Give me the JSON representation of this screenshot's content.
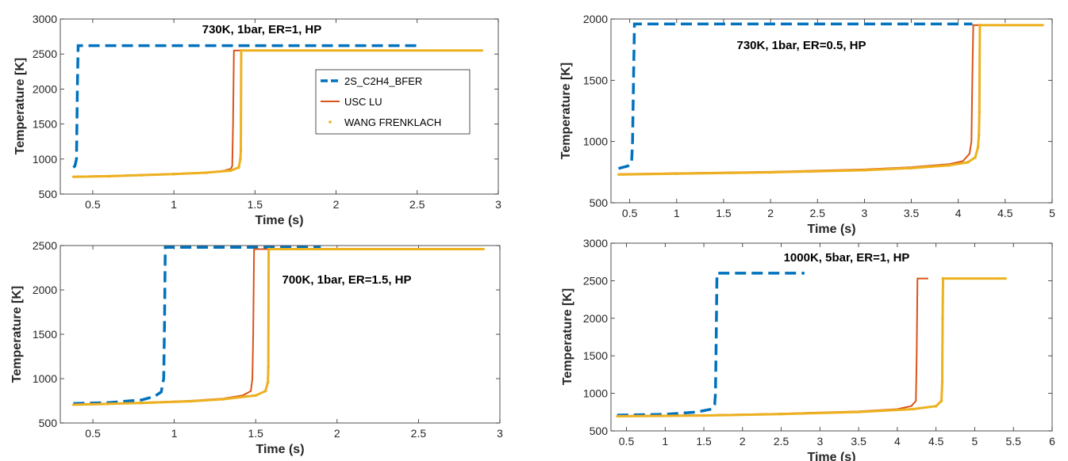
{
  "colors": {
    "bfer": "#0072BD",
    "usc": "#D95319",
    "wang": "#EDB120",
    "axis": "#262626"
  },
  "chart_data": [
    {
      "type": "line",
      "title": "",
      "annotation": "730K, 1bar, ER=1, HP",
      "xlabel": "Time (s)",
      "ylabel": "Temperature [K]",
      "xlim": [
        0.3,
        3
      ],
      "ylim": [
        500,
        3000
      ],
      "xticks": [
        0.5,
        1,
        1.5,
        2,
        2.5,
        3
      ],
      "yticks": [
        500,
        1000,
        1500,
        2000,
        2500,
        3000
      ],
      "legend": {
        "placement": "inside-top-right",
        "entries": [
          "2S_C2H4_BFER",
          "USC LU",
          "WANG FRENKLACH"
        ]
      },
      "series": [
        {
          "name": "2S_C2H4_BFER",
          "style": "dashed",
          "points": [
            [
              0.38,
              880
            ],
            [
              0.39,
              900
            ],
            [
              0.4,
              1000
            ],
            [
              0.405,
              2000
            ],
            [
              0.41,
              2620
            ],
            [
              2.5,
              2620
            ]
          ]
        },
        {
          "name": "USC LU",
          "style": "solid",
          "points": [
            [
              0.38,
              750
            ],
            [
              0.6,
              760
            ],
            [
              0.8,
              775
            ],
            [
              1.0,
              790
            ],
            [
              1.2,
              810
            ],
            [
              1.3,
              830
            ],
            [
              1.35,
              860
            ],
            [
              1.36,
              900
            ],
            [
              1.365,
              1500
            ],
            [
              1.37,
              2550
            ],
            [
              2.9,
              2550
            ]
          ]
        },
        {
          "name": "WANG FRENKLACH",
          "style": "dots",
          "points": [
            [
              0.38,
              745
            ],
            [
              0.6,
              755
            ],
            [
              0.8,
              770
            ],
            [
              1.0,
              785
            ],
            [
              1.2,
              805
            ],
            [
              1.35,
              835
            ],
            [
              1.4,
              880
            ],
            [
              1.41,
              1000
            ],
            [
              1.413,
              1120
            ],
            [
              1.415,
              2550
            ],
            [
              2.9,
              2550
            ]
          ]
        }
      ]
    },
    {
      "type": "line",
      "title": "",
      "annotation": "730K, 1bar, ER=0.5, HP",
      "xlabel": "Time (s)",
      "ylabel": "Temperature [K]",
      "xlim": [
        0.3,
        5
      ],
      "ylim": [
        500,
        2000
      ],
      "xticks": [
        0.5,
        1,
        1.5,
        2,
        2.5,
        3,
        3.5,
        4,
        4.5,
        5
      ],
      "yticks": [
        500,
        1000,
        1500,
        2000
      ],
      "series": [
        {
          "name": "2S_C2H4_BFER",
          "style": "dashed",
          "points": [
            [
              0.38,
              780
            ],
            [
              0.48,
              800
            ],
            [
              0.52,
              830
            ],
            [
              0.53,
              1000
            ],
            [
              0.54,
              1500
            ],
            [
              0.55,
              1960
            ],
            [
              4.15,
              1960
            ]
          ]
        },
        {
          "name": "USC LU",
          "style": "solid",
          "points": [
            [
              0.38,
              735
            ],
            [
              1.0,
              742
            ],
            [
              2.0,
              753
            ],
            [
              3.0,
              772
            ],
            [
              3.5,
              790
            ],
            [
              3.9,
              815
            ],
            [
              4.05,
              840
            ],
            [
              4.12,
              900
            ],
            [
              4.14,
              1000
            ],
            [
              4.15,
              1500
            ],
            [
              4.16,
              1950
            ],
            [
              4.9,
              1950
            ]
          ]
        },
        {
          "name": "WANG FRENKLACH",
          "style": "dots",
          "points": [
            [
              0.38,
              730
            ],
            [
              1.0,
              738
            ],
            [
              2.0,
              748
            ],
            [
              3.0,
              766
            ],
            [
              3.5,
              783
            ],
            [
              3.9,
              805
            ],
            [
              4.1,
              830
            ],
            [
              4.18,
              870
            ],
            [
              4.21,
              950
            ],
            [
              4.22,
              1050
            ],
            [
              4.225,
              1240
            ],
            [
              4.23,
              1950
            ],
            [
              4.9,
              1950
            ]
          ]
        }
      ]
    },
    {
      "type": "line",
      "title": "",
      "annotation": "700K, 1bar, ER=1.5, HP",
      "xlabel": "Time (s)",
      "ylabel": "Temperature [K]",
      "xlim": [
        0.3,
        3
      ],
      "ylim": [
        500,
        2500
      ],
      "xticks": [
        0.5,
        1,
        1.5,
        2,
        2.5,
        3
      ],
      "yticks": [
        500,
        1000,
        1500,
        2000,
        2500
      ],
      "series": [
        {
          "name": "2S_C2H4_BFER",
          "style": "dashed",
          "points": [
            [
              0.38,
              720
            ],
            [
              0.6,
              730
            ],
            [
              0.8,
              760
            ],
            [
              0.88,
              800
            ],
            [
              0.92,
              850
            ],
            [
              0.935,
              1000
            ],
            [
              0.94,
              1600
            ],
            [
              0.945,
              2480
            ],
            [
              1.9,
              2480
            ]
          ]
        },
        {
          "name": "USC LU",
          "style": "solid",
          "points": [
            [
              0.38,
              710
            ],
            [
              0.8,
              730
            ],
            [
              1.1,
              750
            ],
            [
              1.3,
              775
            ],
            [
              1.42,
              810
            ],
            [
              1.47,
              860
            ],
            [
              1.48,
              1000
            ],
            [
              1.485,
              1500
            ],
            [
              1.49,
              2460
            ],
            [
              2.9,
              2460
            ]
          ]
        },
        {
          "name": "WANG FRENKLACH",
          "style": "dots",
          "points": [
            [
              0.38,
              705
            ],
            [
              0.8,
              725
            ],
            [
              1.1,
              745
            ],
            [
              1.3,
              768
            ],
            [
              1.5,
              810
            ],
            [
              1.56,
              860
            ],
            [
              1.575,
              960
            ],
            [
              1.578,
              1130
            ],
            [
              1.58,
              2460
            ],
            [
              2.9,
              2460
            ]
          ]
        }
      ]
    },
    {
      "type": "line",
      "title": "",
      "annotation": "1000K, 5bar, ER=1, HP",
      "xlabel": "Time (s)",
      "ylabel": "Temperature [K]",
      "xlim": [
        0.3,
        6
      ],
      "ylim": [
        500,
        3000
      ],
      "xticks": [
        0.5,
        1,
        1.5,
        2,
        2.5,
        3,
        3.5,
        4,
        4.5,
        5,
        5.5,
        6
      ],
      "yticks": [
        500,
        1000,
        1500,
        2000,
        2500,
        3000
      ],
      "series": [
        {
          "name": "2S_C2H4_BFER",
          "style": "dashed",
          "points": [
            [
              0.38,
              710
            ],
            [
              1.0,
              720
            ],
            [
              1.4,
              750
            ],
            [
              1.6,
              790
            ],
            [
              1.64,
              850
            ],
            [
              1.65,
              1000
            ],
            [
              1.66,
              1800
            ],
            [
              1.67,
              2600
            ],
            [
              2.8,
              2600
            ]
          ]
        },
        {
          "name": "USC LU",
          "style": "solid",
          "points": [
            [
              0.38,
              700
            ],
            [
              1.5,
              710
            ],
            [
              2.5,
              730
            ],
            [
              3.5,
              760
            ],
            [
              4.0,
              790
            ],
            [
              4.18,
              830
            ],
            [
              4.24,
              900
            ],
            [
              4.25,
              1500
            ],
            [
              4.26,
              2530
            ],
            [
              4.4,
              2530
            ]
          ]
        },
        {
          "name": "WANG FRENKLACH",
          "style": "dots",
          "points": [
            [
              0.38,
              695
            ],
            [
              1.5,
              705
            ],
            [
              2.5,
              725
            ],
            [
              3.5,
              752
            ],
            [
              4.2,
              790
            ],
            [
              4.5,
              830
            ],
            [
              4.57,
              900
            ],
            [
              4.58,
              1150
            ],
            [
              4.585,
              2000
            ],
            [
              4.59,
              2530
            ],
            [
              5.4,
              2530
            ]
          ]
        }
      ]
    }
  ]
}
